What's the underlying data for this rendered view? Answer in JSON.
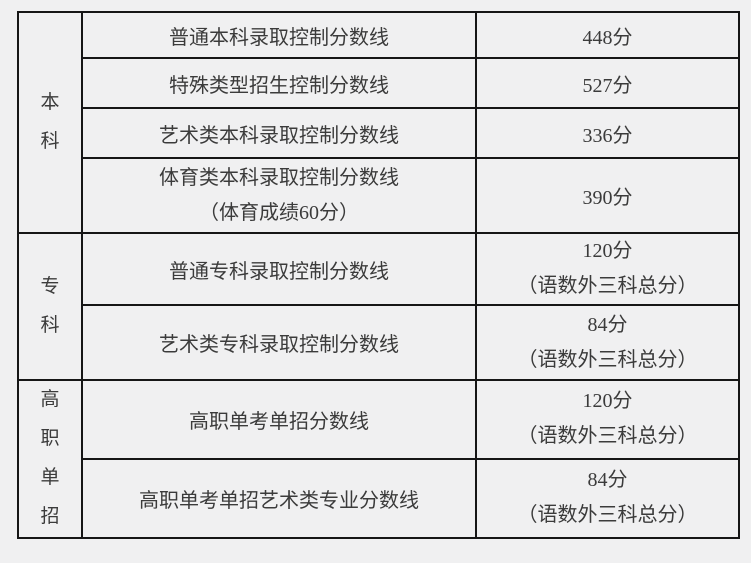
{
  "page": {
    "background_color": "#f0f0f1",
    "border_color": "#161616",
    "text_color": "#3b3b3b"
  },
  "table": {
    "groups": [
      {
        "category": "本科",
        "rows": [
          {
            "label": "普通本科录取控制分数线",
            "label_line2": "",
            "score": "448分",
            "score_note": ""
          },
          {
            "label": "特殊类型招生控制分数线",
            "label_line2": "",
            "score": "527分",
            "score_note": ""
          },
          {
            "label": "艺术类本科录取控制分数线",
            "label_line2": "",
            "score": "336分",
            "score_note": ""
          },
          {
            "label": "体育类本科录取控制分数线",
            "label_line2": "（体育成绩60分）",
            "score": "390分",
            "score_note": ""
          }
        ]
      },
      {
        "category": "专科",
        "rows": [
          {
            "label": "普通专科录取控制分数线",
            "label_line2": "",
            "score": "120分",
            "score_note": "（语数外三科总分）"
          },
          {
            "label": "艺术类专科录取控制分数线",
            "label_line2": "",
            "score": "84分",
            "score_note": "（语数外三科总分）"
          }
        ]
      },
      {
        "category": "高职单招",
        "rows": [
          {
            "label": "高职单考单招分数线",
            "label_line2": "",
            "score": "120分",
            "score_note": "（语数外三科总分）"
          },
          {
            "label": "高职单考单招艺术类专业分数线",
            "label_line2": "",
            "score": "84分",
            "score_note": "（语数外三科总分）"
          }
        ]
      }
    ]
  }
}
